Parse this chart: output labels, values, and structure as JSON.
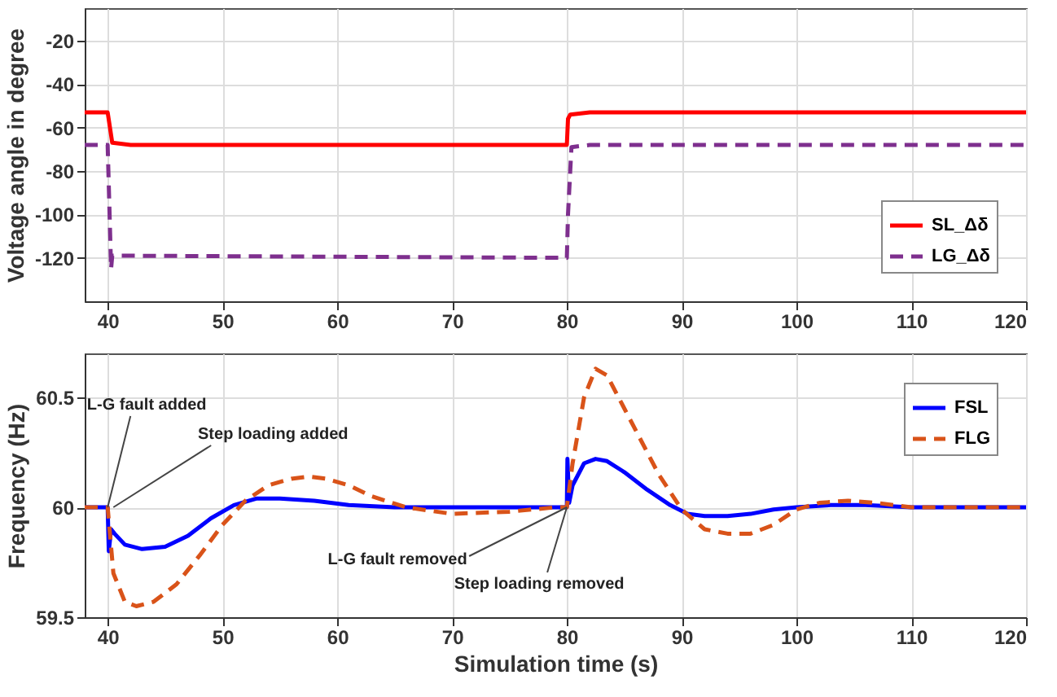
{
  "chart_data": [
    {
      "type": "line",
      "ylabel": "Voltage angle in degree",
      "xlim": [
        38,
        120
      ],
      "xticks": [
        40,
        50,
        60,
        70,
        80,
        90,
        100,
        110,
        120
      ],
      "ylim": [
        -140,
        -5
      ],
      "yticks": [
        -120,
        -100,
        -80,
        -60,
        -40,
        -20
      ],
      "grid": true,
      "legend": "bottom right",
      "series": [
        {
          "name": "SL_Δδ",
          "color": "#ff0000",
          "line_style": "solid",
          "x": [
            38,
            40,
            40.2,
            40.4,
            42,
            80,
            80.1,
            80.3,
            82,
            120
          ],
          "values": [
            -53,
            -53,
            -60,
            -67,
            -68,
            -68,
            -56,
            -54,
            -53,
            -53
          ]
        },
        {
          "name": "LG_Δδ",
          "color": "#7e2f8e",
          "line_style": "dashed",
          "x": [
            38,
            40,
            40.3,
            40.4,
            41,
            80,
            80.1,
            80.4,
            82,
            120
          ],
          "values": [
            -68,
            -68,
            -125,
            -119,
            -119,
            -120,
            -100,
            -69,
            -68,
            -68
          ]
        }
      ]
    },
    {
      "type": "line",
      "xlabel": "Simulation time (s)",
      "ylabel": "Frequency (Hz)",
      "xlim": [
        38,
        120
      ],
      "xticks": [
        40,
        50,
        60,
        70,
        80,
        90,
        100,
        110,
        120
      ],
      "ylim": [
        59.5,
        60.7
      ],
      "yticks": [
        59.5,
        60,
        60.5
      ],
      "grid": true,
      "legend": "top right",
      "annotations": [
        {
          "text": "L-G fault added",
          "x": 40,
          "y": 60
        },
        {
          "text": "Step loading added",
          "x": 40.5,
          "y": 60
        },
        {
          "text": "L-G fault removed",
          "x": 80,
          "y": 60
        },
        {
          "text": "Step loading removed",
          "x": 80,
          "y": 60
        }
      ],
      "series": [
        {
          "name": "FSL",
          "color": "#0000ff",
          "line_style": "solid",
          "x": [
            38,
            40,
            40.1,
            40.3,
            40.6,
            41.5,
            43,
            45,
            47,
            49,
            51,
            53,
            55,
            58,
            61,
            65,
            70,
            75,
            80,
            80.05,
            80.2,
            80.5,
            81.5,
            82.5,
            83.5,
            85,
            87,
            89,
            90.5,
            92,
            94,
            96,
            98,
            100,
            103,
            106,
            110,
            115,
            120
          ],
          "values": [
            60,
            60,
            59.8,
            59.9,
            59.88,
            59.83,
            59.81,
            59.82,
            59.87,
            59.95,
            60.01,
            60.04,
            60.04,
            60.03,
            60.01,
            60,
            60,
            60,
            60,
            60.22,
            60.02,
            60.1,
            60.2,
            60.22,
            60.21,
            60.16,
            60.08,
            60.01,
            59.97,
            59.96,
            59.96,
            59.97,
            59.99,
            60,
            60.01,
            60.01,
            60,
            60,
            60
          ]
        },
        {
          "name": "FLG",
          "color": "#d95319",
          "line_style": "dashed",
          "x": [
            38,
            40,
            40.5,
            41.5,
            42.5,
            44,
            46,
            48,
            50,
            52,
            54,
            56,
            57.5,
            59,
            61,
            63,
            66,
            70,
            75,
            79,
            80,
            80.5,
            81.5,
            82.5,
            83.5,
            85,
            86.5,
            88,
            90,
            92,
            94,
            96,
            98,
            100,
            102,
            104.5,
            107,
            110,
            115,
            120
          ],
          "values": [
            60,
            60,
            59.7,
            59.57,
            59.55,
            59.57,
            59.65,
            59.78,
            59.92,
            60.03,
            60.1,
            60.13,
            60.14,
            60.13,
            60.1,
            60.05,
            60,
            59.97,
            59.98,
            60,
            60,
            60.2,
            60.5,
            60.63,
            60.6,
            60.45,
            60.3,
            60.15,
            59.99,
            59.9,
            59.88,
            59.88,
            59.92,
            59.99,
            60.02,
            60.03,
            60.02,
            60,
            60,
            60
          ]
        }
      ]
    }
  ]
}
